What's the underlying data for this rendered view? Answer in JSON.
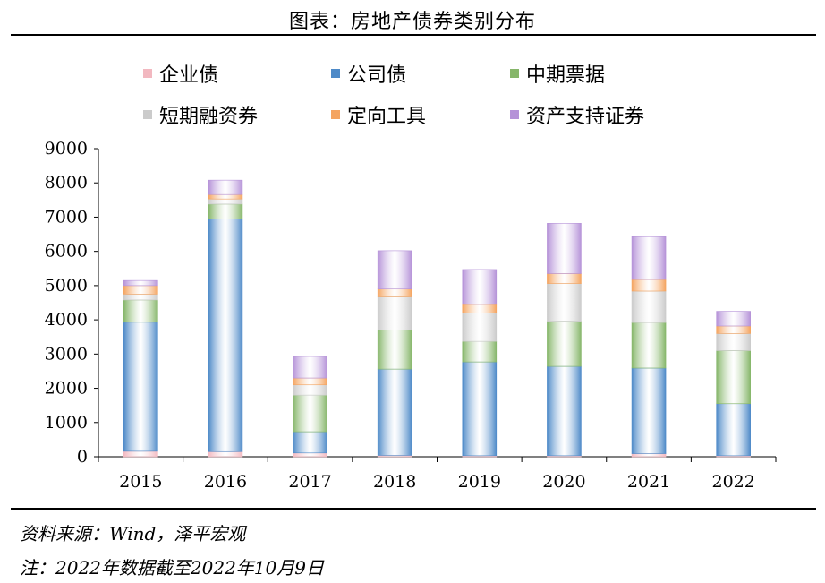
{
  "title": "图表：房地产债券类别分布",
  "footer": {
    "source": "资料来源：Wind，泽平宏观",
    "note": "注：2022年数据截至2022年10月9日"
  },
  "chart_data": {
    "type": "bar",
    "stacked": true,
    "categories": [
      "2015",
      "2016",
      "2017",
      "2018",
      "2019",
      "2020",
      "2021",
      "2022"
    ],
    "ylim": [
      0,
      9000
    ],
    "yticks": [
      0,
      1000,
      2000,
      3000,
      4000,
      5000,
      6000,
      7000,
      8000,
      9000
    ],
    "title": "",
    "xlabel": "",
    "ylabel": "",
    "legend_position": "top",
    "series": [
      {
        "name": "企业债",
        "color": "#f2b8c0",
        "values": [
          160,
          150,
          110,
          40,
          30,
          30,
          90,
          30
        ]
      },
      {
        "name": "公司债",
        "color": "#4e8ac8",
        "values": [
          3770,
          6800,
          620,
          2520,
          2740,
          2610,
          2500,
          1520
        ]
      },
      {
        "name": "中期票据",
        "color": "#86b66a",
        "values": [
          650,
          430,
          1070,
          1140,
          600,
          1320,
          1330,
          1550
        ]
      },
      {
        "name": "短期融资券",
        "color": "#cbcbcb",
        "values": [
          170,
          150,
          300,
          970,
          830,
          1100,
          920,
          500
        ]
      },
      {
        "name": "定向工具",
        "color": "#f4a460",
        "values": [
          250,
          130,
          200,
          230,
          250,
          290,
          340,
          220
        ]
      },
      {
        "name": "资产支持证券",
        "color": "#b592d8",
        "values": [
          150,
          420,
          630,
          1120,
          1020,
          1470,
          1250,
          430
        ]
      }
    ]
  }
}
